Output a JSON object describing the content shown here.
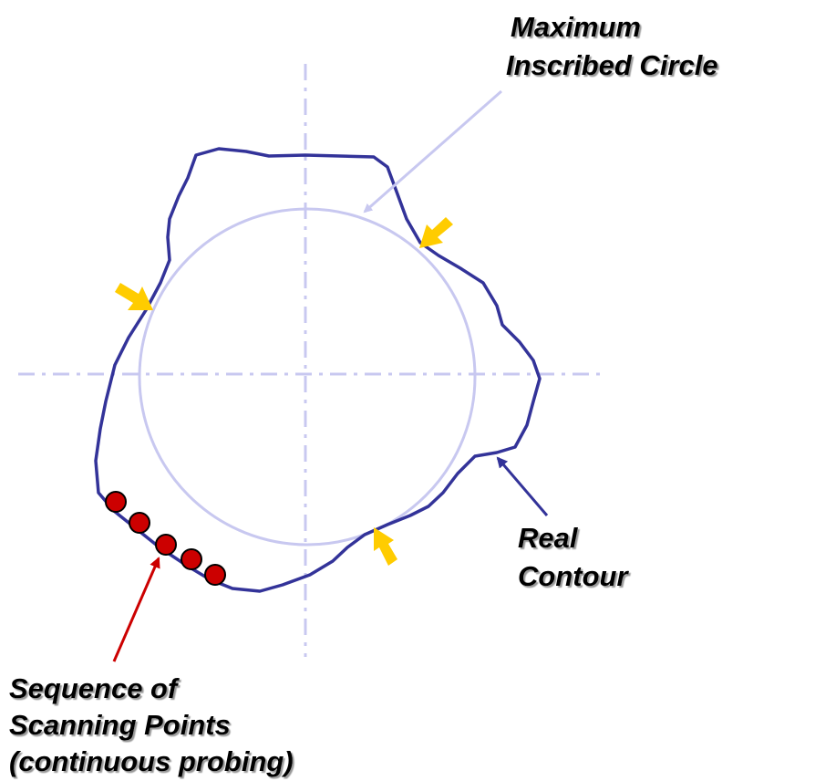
{
  "labels": {
    "max_circle": [
      "Maximum",
      "Inscribed Circle"
    ],
    "real_contour": [
      "Real",
      "Contour"
    ],
    "scanning": [
      "Sequence of",
      "Scanning Points",
      "(continuous probing)"
    ]
  }
}
